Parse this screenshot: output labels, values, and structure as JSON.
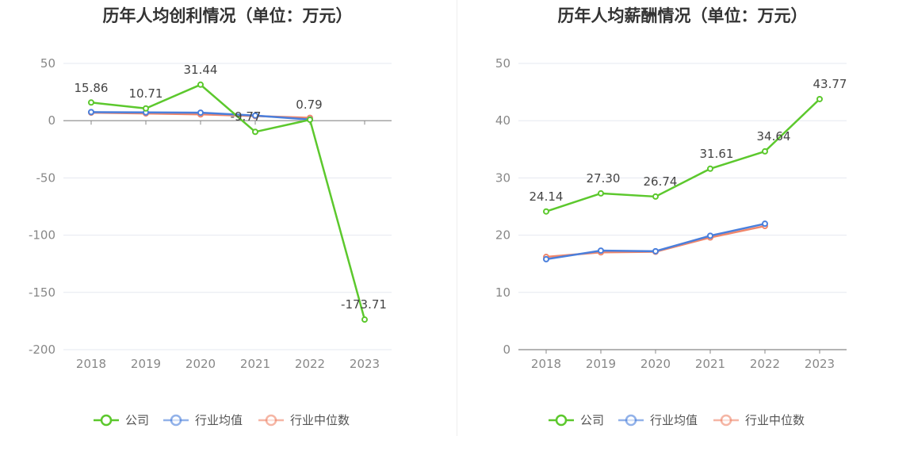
{
  "chart_data": [
    {
      "type": "line",
      "title": "历年人均创利情况（单位：万元）",
      "categories": [
        "2018",
        "2019",
        "2020",
        "2021",
        "2022",
        "2023"
      ],
      "ylim": [
        -200,
        50
      ],
      "yticks": [
        50,
        0,
        -50,
        -100,
        -150,
        -200
      ],
      "grid": true,
      "legend_position": "bottom",
      "series": [
        {
          "name": "公司",
          "color": "#5cc82d",
          "values": [
            15.86,
            10.71,
            31.44,
            -9.77,
            0.79,
            -173.71
          ],
          "labels": [
            "15.86",
            "10.71",
            "31.44",
            "-9.77",
            "0.79",
            "-173.71"
          ]
        },
        {
          "name": "行业均值",
          "color": "#4a7fdc",
          "values": [
            7.5,
            7.2,
            7.0,
            4.5,
            1.0,
            null
          ]
        },
        {
          "name": "行业中位数",
          "color": "#f0866a",
          "values": [
            7.0,
            6.3,
            5.5,
            4.0,
            2.5,
            null
          ]
        }
      ]
    },
    {
      "type": "line",
      "title": "历年人均薪酬情况（单位：万元）",
      "categories": [
        "2018",
        "2019",
        "2020",
        "2021",
        "2022",
        "2023"
      ],
      "ylim": [
        0,
        50
      ],
      "yticks": [
        50,
        40,
        30,
        20,
        10,
        0
      ],
      "grid": true,
      "legend_position": "bottom",
      "series": [
        {
          "name": "公司",
          "color": "#5cc82d",
          "values": [
            24.14,
            27.3,
            26.74,
            31.61,
            34.64,
            43.77
          ],
          "labels": [
            "24.14",
            "27.30",
            "26.74",
            "31.61",
            "34.64",
            "43.77"
          ]
        },
        {
          "name": "行业均值",
          "color": "#4a7fdc",
          "values": [
            15.8,
            17.3,
            17.2,
            19.9,
            22.0,
            null
          ]
        },
        {
          "name": "行业中位数",
          "color": "#f0866a",
          "values": [
            16.2,
            17.0,
            17.1,
            19.6,
            21.6,
            null
          ]
        }
      ]
    }
  ]
}
